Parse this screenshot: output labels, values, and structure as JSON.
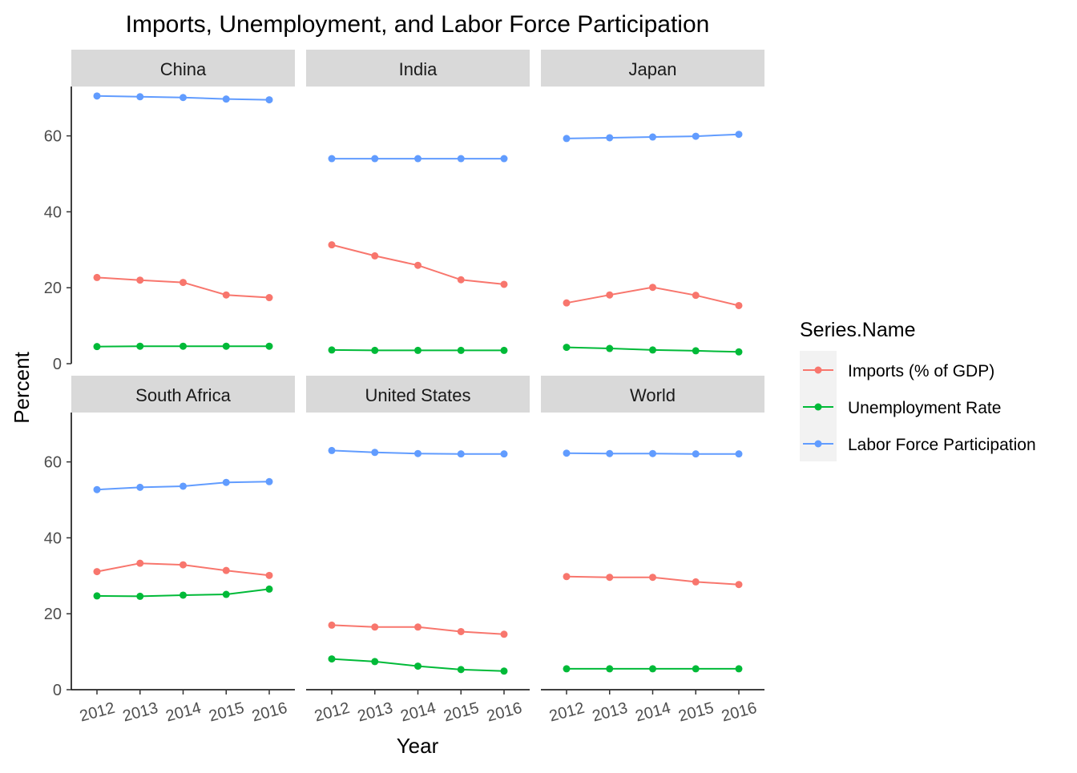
{
  "chart_data": {
    "type": "line",
    "title": "Imports, Unemployment, and Labor Force Participation",
    "xlabel": "Year",
    "ylabel": "Percent",
    "x": [
      "2012",
      "2013",
      "2014",
      "2015",
      "2016"
    ],
    "ylim": [
      0,
      73
    ],
    "yticks": [
      0,
      20,
      40,
      60
    ],
    "grid": false,
    "legend": {
      "title": "Series.Name",
      "position": "right"
    },
    "series_styles": [
      {
        "name": "Imports (% of GDP)",
        "color": "#F8766D"
      },
      {
        "name": "Unemployment Rate",
        "color": "#00BA38"
      },
      {
        "name": "Labor Force Participation",
        "color": "#619CFF"
      }
    ],
    "facets": [
      {
        "name": "China",
        "series": [
          {
            "name": "Imports (% of GDP)",
            "values": [
              22.7,
              22.0,
              21.4,
              18.1,
              17.4
            ]
          },
          {
            "name": "Unemployment Rate",
            "values": [
              4.5,
              4.6,
              4.6,
              4.6,
              4.6
            ]
          },
          {
            "name": "Labor Force Participation",
            "values": [
              70.5,
              70.3,
              70.1,
              69.7,
              69.5
            ]
          }
        ]
      },
      {
        "name": "India",
        "series": [
          {
            "name": "Imports (% of GDP)",
            "values": [
              31.3,
              28.4,
              25.9,
              22.1,
              20.9
            ]
          },
          {
            "name": "Unemployment Rate",
            "values": [
              3.6,
              3.5,
              3.5,
              3.5,
              3.5
            ]
          },
          {
            "name": "Labor Force Participation",
            "values": [
              54.0,
              54.0,
              54.0,
              54.0,
              54.0
            ]
          }
        ]
      },
      {
        "name": "Japan",
        "series": [
          {
            "name": "Imports (% of GDP)",
            "values": [
              16.0,
              18.1,
              20.1,
              18.0,
              15.3
            ]
          },
          {
            "name": "Unemployment Rate",
            "values": [
              4.3,
              4.0,
              3.6,
              3.4,
              3.1
            ]
          },
          {
            "name": "Labor Force Participation",
            "values": [
              59.3,
              59.5,
              59.7,
              59.9,
              60.4
            ]
          }
        ]
      },
      {
        "name": "South Africa",
        "series": [
          {
            "name": "Imports (% of GDP)",
            "values": [
              31.1,
              33.3,
              32.9,
              31.4,
              30.1
            ]
          },
          {
            "name": "Unemployment Rate",
            "values": [
              24.7,
              24.6,
              24.9,
              25.1,
              26.5
            ]
          },
          {
            "name": "Labor Force Participation",
            "values": [
              52.7,
              53.3,
              53.6,
              54.6,
              54.8
            ]
          }
        ]
      },
      {
        "name": "United States",
        "series": [
          {
            "name": "Imports (% of GDP)",
            "values": [
              17.0,
              16.5,
              16.5,
              15.3,
              14.6
            ]
          },
          {
            "name": "Unemployment Rate",
            "values": [
              8.1,
              7.4,
              6.2,
              5.3,
              4.9
            ]
          },
          {
            "name": "Labor Force Participation",
            "values": [
              63.0,
              62.5,
              62.2,
              62.1,
              62.1
            ]
          }
        ]
      },
      {
        "name": "World",
        "series": [
          {
            "name": "Imports (% of GDP)",
            "values": [
              29.8,
              29.6,
              29.6,
              28.4,
              27.7
            ]
          },
          {
            "name": "Unemployment Rate",
            "values": [
              5.5,
              5.5,
              5.5,
              5.5,
              5.5
            ]
          },
          {
            "name": "Labor Force Participation",
            "values": [
              62.3,
              62.2,
              62.2,
              62.1,
              62.1
            ]
          }
        ]
      }
    ]
  }
}
